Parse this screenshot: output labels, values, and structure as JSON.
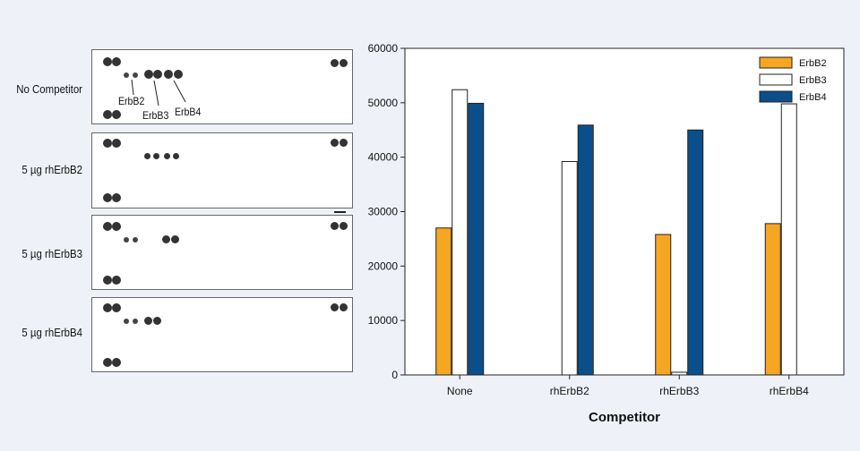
{
  "blots": {
    "labels": [
      "No Competitor",
      "5 µg rhErbB2",
      "5 µg rhErbB3",
      "5 µg rhErbB4"
    ],
    "callouts": [
      "ErbB2",
      "ErbB3",
      "ErbB4"
    ]
  },
  "colors": {
    "ErbB2": "#f5a623",
    "ErbB3": "#ffffff",
    "ErbB4": "#0b4f8a",
    "background": "#eef2f8"
  },
  "chart_data": {
    "type": "bar",
    "categories": [
      "None",
      "rhErbB2",
      "rhErbB3",
      "rhErbB4"
    ],
    "series": [
      {
        "name": "ErbB2",
        "values": [
          27000,
          0,
          25800,
          27800
        ]
      },
      {
        "name": "ErbB3",
        "values": [
          52400,
          39200,
          500,
          49800
        ]
      },
      {
        "name": "ErbB4",
        "values": [
          49900,
          45900,
          45000,
          0
        ]
      }
    ],
    "xlabel": "Competitor",
    "ylabel": "",
    "ylim": [
      0,
      60000
    ],
    "yticks": [
      0,
      10000,
      20000,
      30000,
      40000,
      50000,
      60000
    ],
    "legend": "top-right",
    "grid": false
  }
}
